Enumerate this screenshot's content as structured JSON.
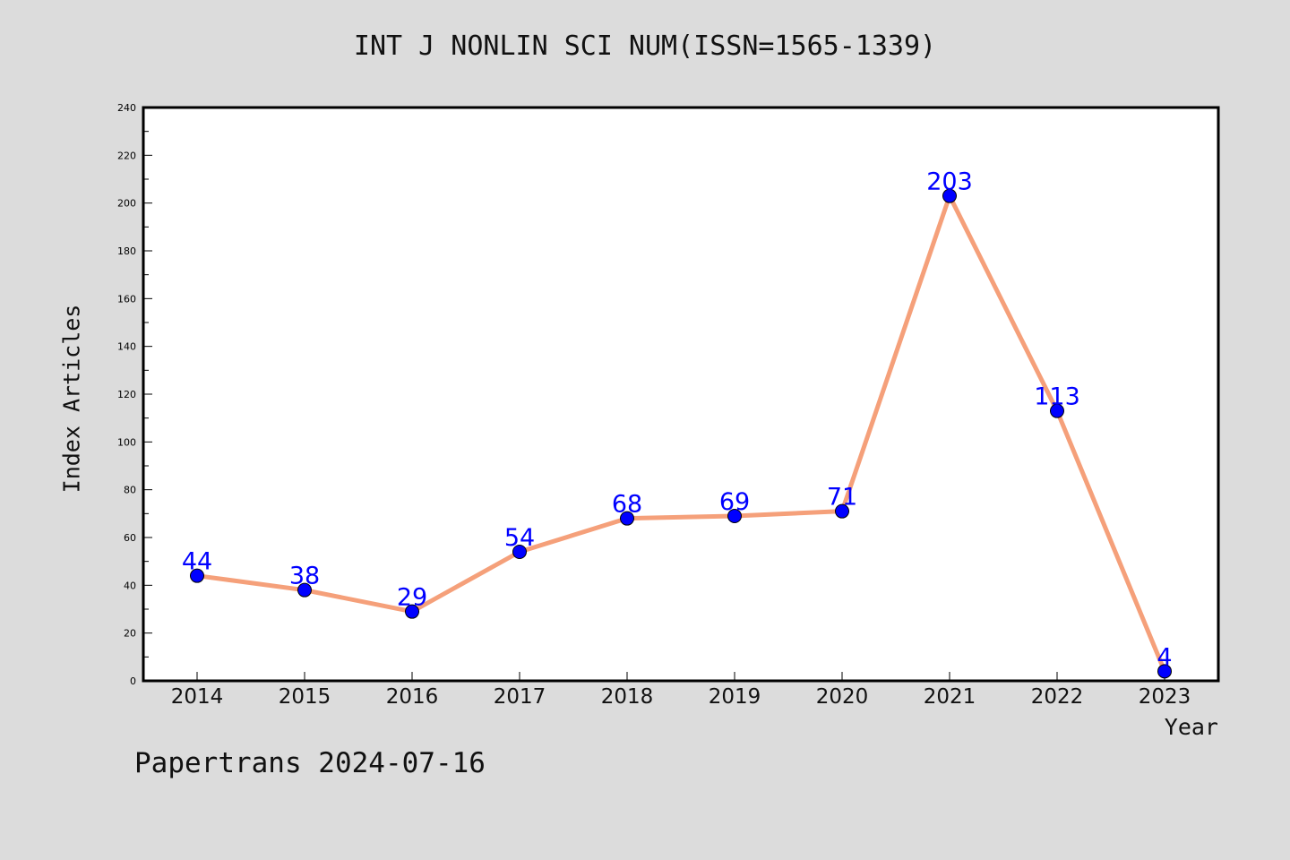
{
  "chart_data": {
    "type": "line",
    "title": "INT J NONLIN SCI NUM(ISSN=1565-1339)",
    "xlabel": "Year",
    "ylabel": "Index Articles",
    "categories": [
      "2014",
      "2015",
      "2016",
      "2017",
      "2018",
      "2019",
      "2020",
      "2021",
      "2022",
      "2023"
    ],
    "series": [
      {
        "values": [
          44,
          38,
          29,
          54,
          68,
          69,
          71,
          203,
          113,
          4
        ]
      }
    ],
    "ylim": [
      0,
      240
    ],
    "yticks": [
      0,
      20,
      40,
      60,
      80,
      100,
      120,
      140,
      160,
      180,
      200,
      220,
      240
    ],
    "grid": false,
    "legend": "none",
    "line_color": "#f5a07a",
    "marker_color": "#0000ff",
    "data_label_color": "#0000ff"
  },
  "footer": "Papertrans 2024-07-16"
}
